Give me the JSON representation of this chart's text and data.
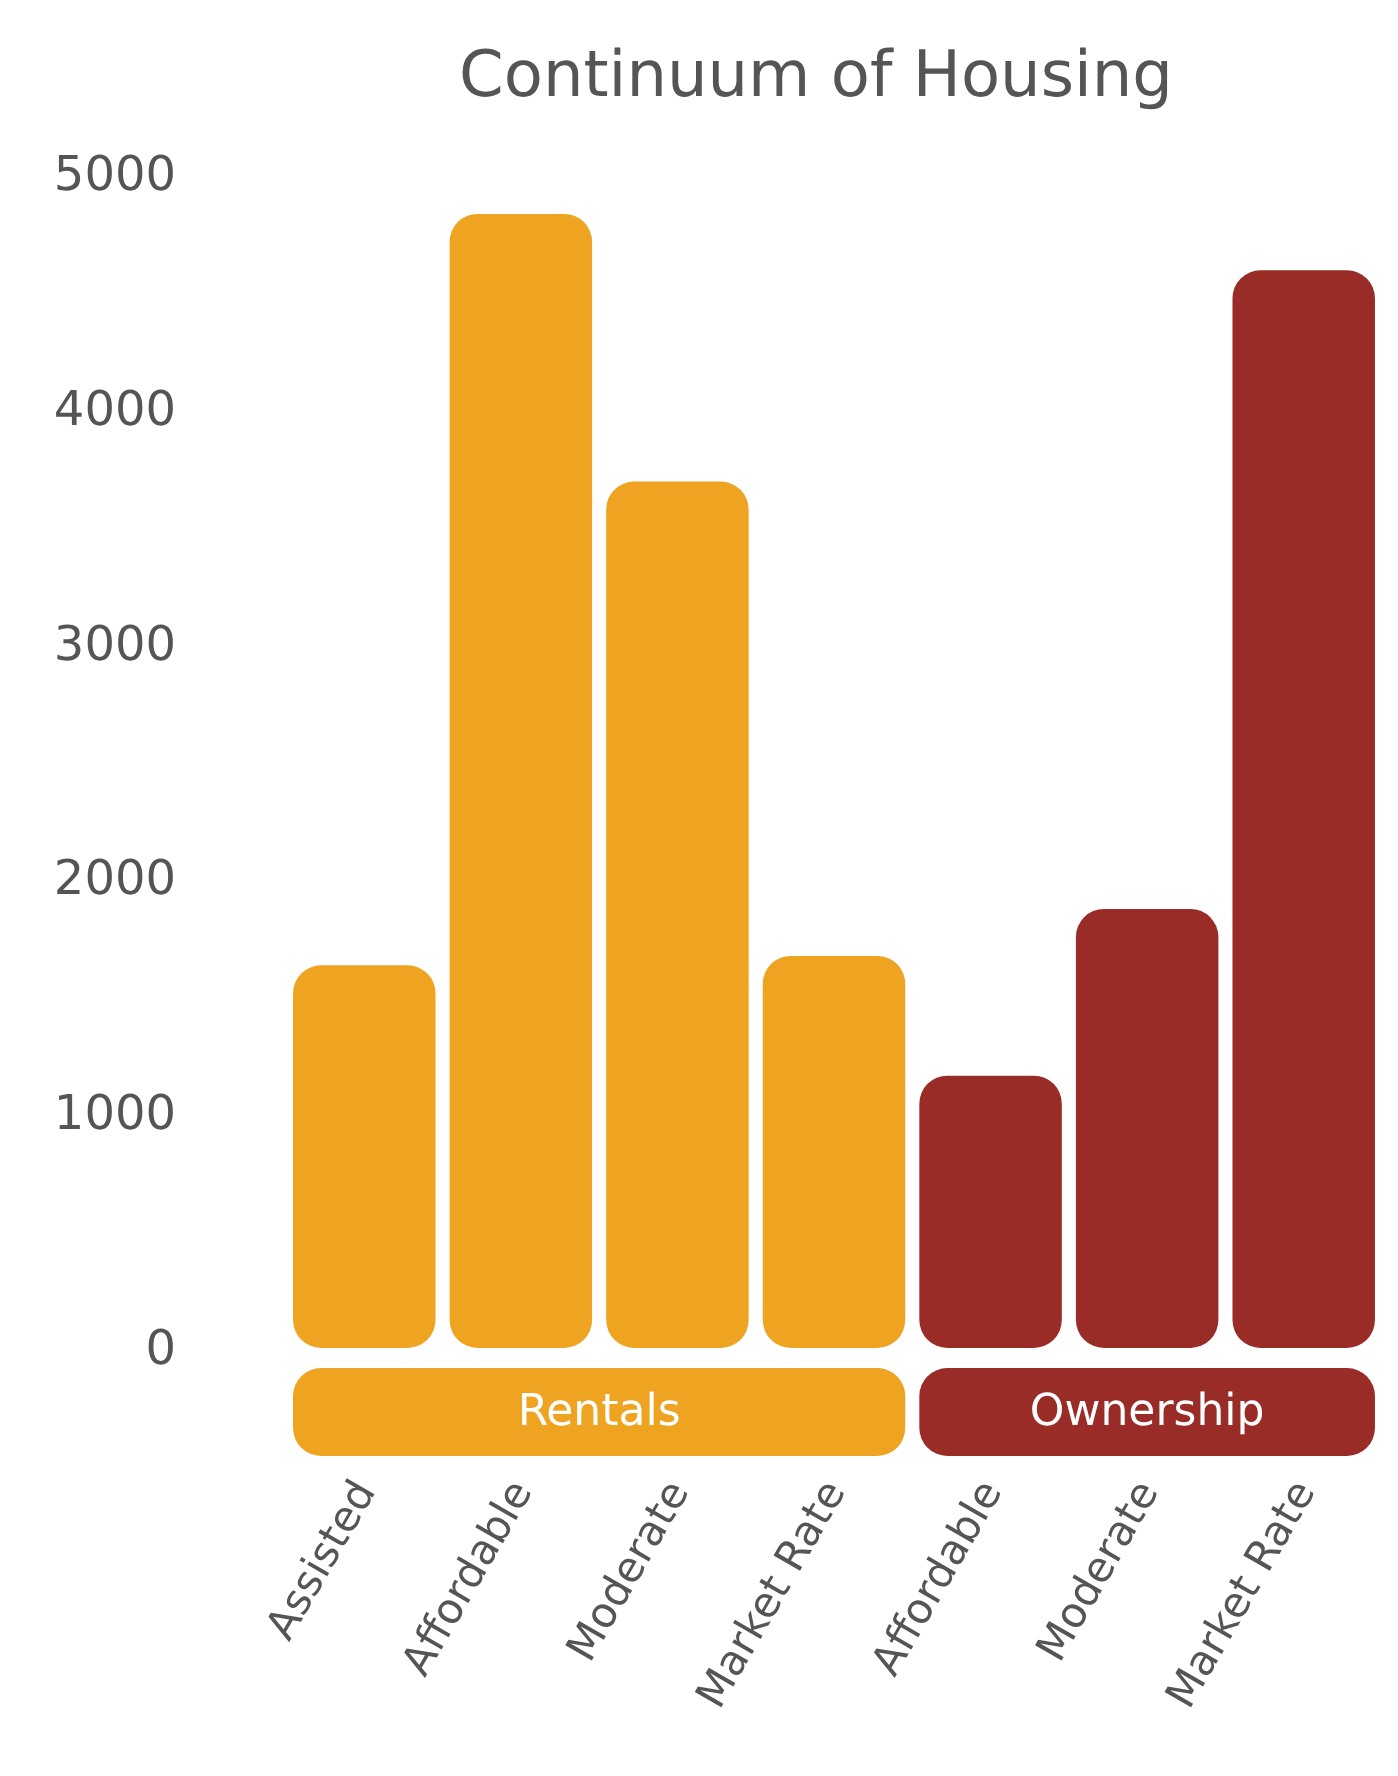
{
  "chart_data": {
    "type": "bar",
    "title": "Continuum of Housing",
    "categories": [
      "Assisted",
      "Affordable",
      "Moderate",
      "Market Rate",
      "Affordable",
      "Moderate",
      "Market Rate"
    ],
    "series": [
      {
        "name": "Rentals",
        "color": "#eea321",
        "values": [
          1630,
          4830,
          3690,
          1670,
          null,
          null,
          null
        ]
      },
      {
        "name": "Ownership",
        "color": "#9a2c27",
        "values": [
          null,
          null,
          null,
          null,
          1160,
          1870,
          4590
        ]
      }
    ],
    "ylim": [
      0,
      5000
    ],
    "yticks": [
      0,
      1000,
      2000,
      3000,
      4000,
      5000
    ],
    "grid": false,
    "legend": false
  }
}
